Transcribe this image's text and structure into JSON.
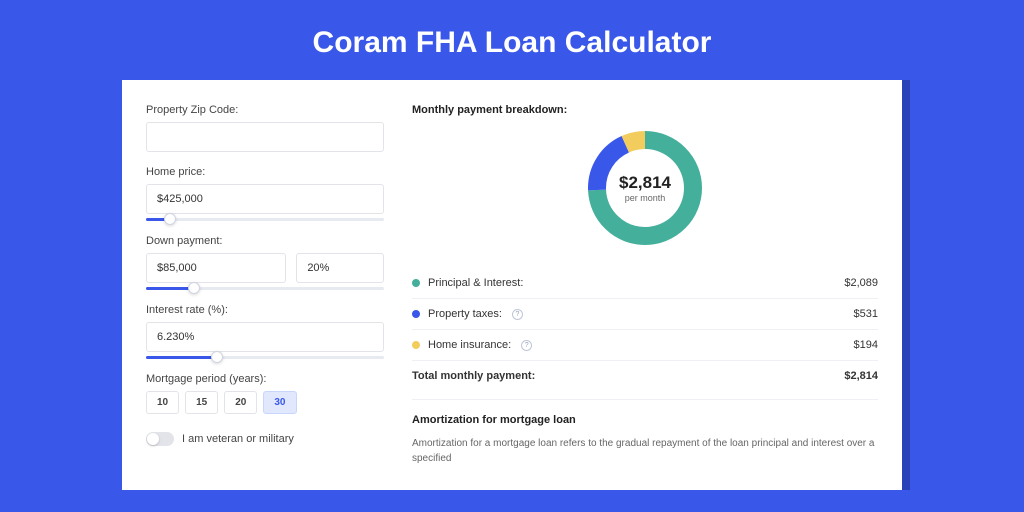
{
  "page": {
    "title": "Coram FHA Loan Calculator",
    "background_color": "#3957e8",
    "shadow_color": "#2a42b8"
  },
  "form": {
    "zip": {
      "label": "Property Zip Code:",
      "value": ""
    },
    "home_price": {
      "label": "Home price:",
      "value": "$425,000",
      "slider_pct": 10
    },
    "down_payment": {
      "label": "Down payment:",
      "value": "$85,000",
      "pct_value": "20%",
      "slider_pct": 20
    },
    "interest_rate": {
      "label": "Interest rate (%):",
      "value": "6.230%",
      "slider_pct": 30
    },
    "period": {
      "label": "Mortgage period (years):",
      "options": [
        "10",
        "15",
        "20",
        "30"
      ],
      "selected": "30"
    },
    "veteran": {
      "label": "I am veteran or military",
      "checked": false
    }
  },
  "breakdown": {
    "title": "Monthly payment breakdown:",
    "center_amount": "$2,814",
    "center_sub": "per month",
    "donut": {
      "radius": 48,
      "stroke": 18,
      "bg": "#ffffff",
      "slices": [
        {
          "label": "Principal & Interest:",
          "key": "pi",
          "color": "#44af9b",
          "value": "$2,089",
          "pct": 74.2,
          "info": false
        },
        {
          "label": "Property taxes:",
          "key": "tax",
          "color": "#3957e8",
          "value": "$531",
          "pct": 18.9,
          "info": true
        },
        {
          "label": "Home insurance:",
          "key": "ins",
          "color": "#f2cc5d",
          "value": "$194",
          "pct": 6.9,
          "info": true
        }
      ]
    },
    "total": {
      "label": "Total monthly payment:",
      "value": "$2,814"
    }
  },
  "amortization": {
    "title": "Amortization for mortgage loan",
    "text": "Amortization for a mortgage loan refers to the gradual repayment of the loan principal and interest over a specified"
  }
}
